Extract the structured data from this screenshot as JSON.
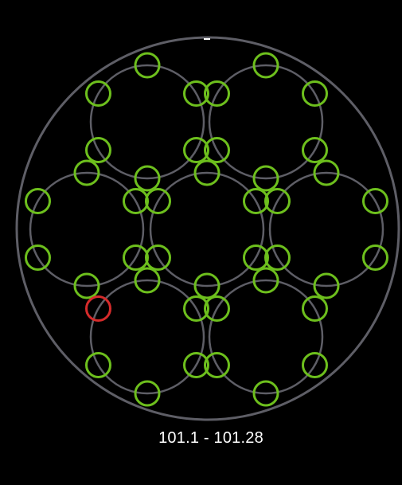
{
  "display": {
    "range_label": "101.1 - 101.28"
  },
  "colors": {
    "background": "#000000",
    "outline": "#5e5e66",
    "ok": "#6dbf1d",
    "fault": "#d62b2b",
    "text": "#ffffff"
  },
  "groups": [
    {
      "id": "group-top-left",
      "wells": [
        "ok",
        "ok",
        "ok",
        "ok",
        "ok",
        "ok"
      ]
    },
    {
      "id": "group-top-right",
      "wells": [
        "ok",
        "ok",
        "ok",
        "ok",
        "ok",
        "ok"
      ]
    },
    {
      "id": "group-mid-left",
      "wells": [
        "ok",
        "ok",
        "ok",
        "ok",
        "ok",
        "ok"
      ]
    },
    {
      "id": "group-center",
      "wells": [
        "ok",
        "ok",
        "ok",
        "ok",
        "ok",
        "ok"
      ]
    },
    {
      "id": "group-mid-right",
      "wells": [
        "ok",
        "ok",
        "ok",
        "ok",
        "ok",
        "ok"
      ]
    },
    {
      "id": "group-bottom-left",
      "wells": [
        "ok",
        "ok",
        "ok",
        "ok",
        "ok",
        "fault"
      ]
    },
    {
      "id": "group-bottom-right",
      "wells": [
        "ok",
        "ok",
        "ok",
        "ok",
        "ok",
        "ok"
      ]
    }
  ]
}
